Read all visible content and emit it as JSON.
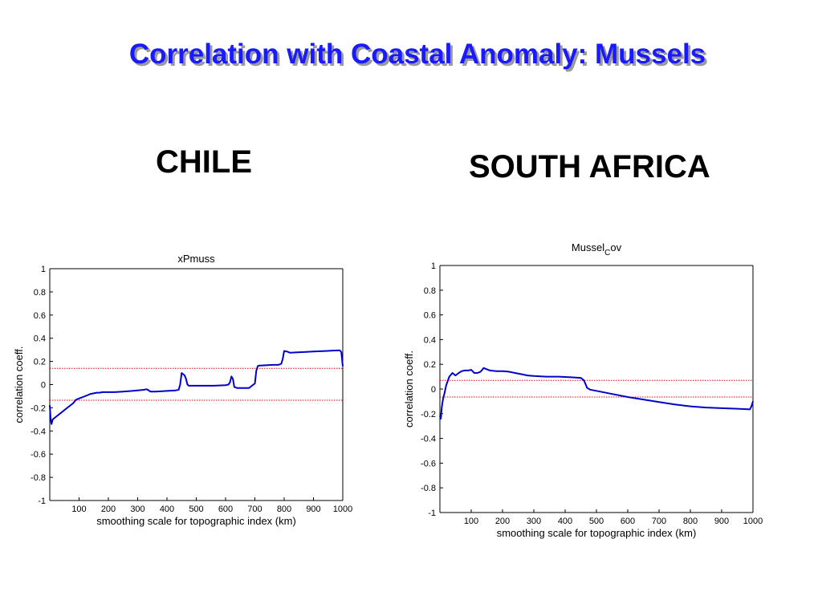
{
  "title": "Correlation with Coastal Anomaly: Mussels",
  "regions": {
    "chile": "CHILE",
    "south_africa": "SOUTH AFRICA"
  },
  "colors": {
    "title": "#1a1aff",
    "series": "#0000cc",
    "threshold": "#ff0000"
  },
  "chart_data": [
    {
      "type": "line",
      "title": "xPmuss",
      "xlabel": "smoothing scale for topographic index (km)",
      "ylabel": "correlation coeff.",
      "xlim": [
        0,
        1000
      ],
      "ylim": [
        -1,
        1
      ],
      "xticks": [
        100,
        200,
        300,
        400,
        500,
        600,
        700,
        800,
        900,
        1000
      ],
      "yticks": [
        1,
        0.8,
        0.6,
        0.4,
        0.2,
        0,
        -0.2,
        -0.4,
        -0.6,
        -0.8,
        -1
      ],
      "ytick_labels": [
        "1",
        "0.8",
        "0.6",
        "0.4",
        "0.2",
        "0",
        "-0.2",
        "-0.4",
        "-0.6",
        "-0.8",
        "-1"
      ],
      "grid": false,
      "thresholds": [
        0.14,
        -0.135
      ],
      "x": [
        0,
        3,
        6,
        10,
        20,
        40,
        60,
        80,
        90,
        100,
        120,
        140,
        160,
        170,
        180,
        200,
        220,
        250,
        280,
        300,
        320,
        330,
        335,
        340,
        345,
        360,
        400,
        430,
        440,
        445,
        450,
        455,
        460,
        465,
        470,
        475,
        480,
        520,
        560,
        600,
        610,
        615,
        620,
        625,
        630,
        640,
        660,
        680,
        690,
        700,
        705,
        710,
        715,
        720,
        760,
        780,
        790,
        795,
        800,
        810,
        820,
        860,
        900,
        940,
        980,
        990,
        995,
        1000
      ],
      "y": [
        -0.18,
        -0.3,
        -0.34,
        -0.3,
        -0.28,
        -0.24,
        -0.2,
        -0.16,
        -0.13,
        -0.12,
        -0.1,
        -0.08,
        -0.07,
        -0.07,
        -0.065,
        -0.065,
        -0.065,
        -0.06,
        -0.055,
        -0.05,
        -0.045,
        -0.04,
        -0.045,
        -0.055,
        -0.06,
        -0.06,
        -0.055,
        -0.05,
        -0.045,
        0.0,
        0.1,
        0.09,
        0.08,
        0.05,
        0.0,
        -0.01,
        -0.01,
        -0.01,
        -0.01,
        -0.005,
        0.0,
        0.02,
        0.07,
        0.05,
        -0.02,
        -0.03,
        -0.03,
        -0.03,
        -0.01,
        0.01,
        0.12,
        0.16,
        0.165,
        0.165,
        0.17,
        0.17,
        0.18,
        0.22,
        0.29,
        0.285,
        0.275,
        0.28,
        0.285,
        0.29,
        0.295,
        0.295,
        0.28,
        0.16
      ]
    },
    {
      "type": "line",
      "title": "Mussel",
      "title_sub": "C",
      "title_suffix": "ov",
      "xlabel": "smoothing scale for topographic index (km)",
      "ylabel": "correlation coeff.",
      "xlim": [
        0,
        1000
      ],
      "ylim": [
        -1,
        1
      ],
      "xticks": [
        100,
        200,
        300,
        400,
        500,
        600,
        700,
        800,
        900,
        1000
      ],
      "yticks": [
        1,
        0.8,
        0.6,
        0.4,
        0.2,
        0,
        -0.2,
        -0.4,
        -0.6,
        -0.8,
        -1
      ],
      "ytick_labels": [
        "1",
        "0.8",
        "0.6",
        "0.4",
        "0.2",
        "0",
        "-0.2",
        "-0.4",
        "-0.6",
        "-0.8",
        "-1"
      ],
      "grid": false,
      "thresholds": [
        0.07,
        -0.065
      ],
      "x": [
        0,
        3,
        6,
        10,
        15,
        20,
        30,
        40,
        50,
        60,
        70,
        80,
        90,
        100,
        110,
        120,
        130,
        140,
        150,
        160,
        180,
        200,
        220,
        240,
        260,
        280,
        300,
        340,
        380,
        420,
        450,
        460,
        465,
        470,
        480,
        500,
        550,
        600,
        650,
        700,
        750,
        800,
        850,
        900,
        950,
        990,
        995,
        1000
      ],
      "y": [
        -0.22,
        -0.24,
        -0.15,
        -0.08,
        -0.03,
        0.03,
        0.1,
        0.13,
        0.11,
        0.13,
        0.145,
        0.15,
        0.15,
        0.155,
        0.13,
        0.13,
        0.14,
        0.17,
        0.16,
        0.15,
        0.145,
        0.145,
        0.14,
        0.13,
        0.12,
        0.11,
        0.105,
        0.1,
        0.1,
        0.095,
        0.09,
        0.07,
        0.04,
        0.01,
        -0.005,
        -0.015,
        -0.04,
        -0.065,
        -0.085,
        -0.105,
        -0.125,
        -0.14,
        -0.15,
        -0.155,
        -0.16,
        -0.165,
        -0.14,
        -0.1
      ]
    }
  ]
}
